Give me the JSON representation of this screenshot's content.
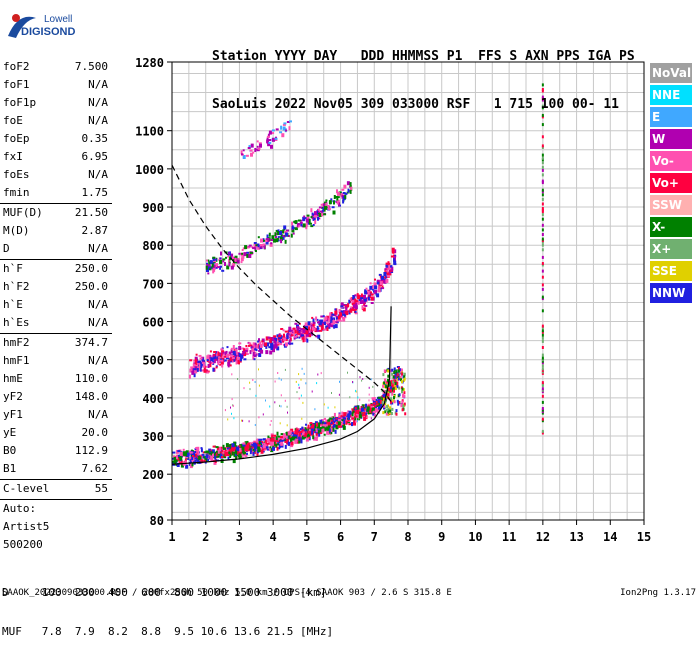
{
  "logo": {
    "line1": "Lowell",
    "line2": "DIGISONDE"
  },
  "header": {
    "line1": "Station YYYY DAY   DDD HHMMSS P1  FFS S AXN PPS IGA PS",
    "line2": "SaoLuis 2022 Nov05 309 033000 RSF   1 715 100 00- 11"
  },
  "params": {
    "g1": [
      {
        "label": "foF2",
        "value": "7.500"
      },
      {
        "label": "foF1",
        "value": "N/A"
      },
      {
        "label": "foF1p",
        "value": "N/A"
      },
      {
        "label": "foE",
        "value": "N/A"
      },
      {
        "label": "foEp",
        "value": "0.35"
      },
      {
        "label": "fxI",
        "value": "6.95"
      },
      {
        "label": "foEs",
        "value": "N/A"
      },
      {
        "label": "fmin",
        "value": "1.75"
      }
    ],
    "g2": [
      {
        "label": "MUF(D)",
        "value": "21.50"
      },
      {
        "label": "M(D)",
        "value": "2.87"
      },
      {
        "label": "D",
        "value": "N/A"
      }
    ],
    "g3": [
      {
        "label": "h`F",
        "value": "250.0"
      },
      {
        "label": "h`F2",
        "value": "250.0"
      },
      {
        "label": "h`E",
        "value": "N/A"
      },
      {
        "label": "h`Es",
        "value": "N/A"
      }
    ],
    "g4": [
      {
        "label": "hmF2",
        "value": "374.7"
      },
      {
        "label": "hmF1",
        "value": "N/A"
      },
      {
        "label": "hmE",
        "value": "110.0"
      },
      {
        "label": "yF2",
        "value": "148.0"
      },
      {
        "label": "yF1",
        "value": "N/A"
      },
      {
        "label": "yE",
        "value": "20.0"
      },
      {
        "label": "B0",
        "value": "112.9"
      },
      {
        "label": "B1",
        "value": "7.62"
      }
    ],
    "clevel": {
      "label": "C-level",
      "value": "55"
    },
    "auto": [
      "Auto:",
      "Artist5",
      "500200"
    ]
  },
  "legend": [
    {
      "label": "NoVal",
      "color": "#a0a0a0"
    },
    {
      "label": "NNE",
      "color": "#00e0ff"
    },
    {
      "label": "E",
      "color": "#40a8ff"
    },
    {
      "label": "W",
      "color": "#b000b0"
    },
    {
      "label": "Vo-",
      "color": "#ff50b0"
    },
    {
      "label": "Vo+",
      "color": "#ff0040"
    },
    {
      "label": "SSW",
      "color": "#ffb0b0"
    },
    {
      "label": "X-",
      "color": "#008000"
    },
    {
      "label": "X+",
      "color": "#70b070"
    },
    {
      "label": "SSE",
      "color": "#e0d000"
    },
    {
      "label": "NNW",
      "color": "#2020e0"
    }
  ],
  "muf_table": {
    "line1": "D     100  200  400  600  800 1000 1500 3000 [km]",
    "line2": "MUF   7.8  7.9  8.2  8.8  9.5 10.6 13.6 21.5 [MHz]"
  },
  "footer": "SAAOK_2022309033000.RSF / 280fx256h 50 kHz 5.0 km / DPS-4 SAAOK 903 / 2.6 S 315.8 E",
  "version": "Ion2Png 1.3.17",
  "chart_data": {
    "type": "scatter",
    "title": "",
    "xlabel": "",
    "ylabel": "",
    "xlim": [
      1,
      15
    ],
    "ylim": [
      80,
      1280
    ],
    "x_ticks": [
      1,
      2,
      3,
      4,
      5,
      6,
      7,
      8,
      9,
      10,
      11,
      12,
      13,
      14,
      15
    ],
    "y_ticks": [
      80,
      200,
      300,
      400,
      500,
      600,
      700,
      800,
      900,
      1000,
      1100,
      1280
    ],
    "grid": true,
    "traces": [
      {
        "name": "F2 1st hop",
        "color_mix": [
          "#2020e0",
          "#ff0040",
          "#008000",
          "#ff50b0"
        ],
        "x": [
          1.0,
          1.5,
          2.0,
          2.5,
          3.0,
          3.5,
          4.0,
          4.5,
          5.0,
          5.5,
          6.0,
          6.5,
          7.0,
          7.3,
          7.5,
          7.7
        ],
        "y": [
          245,
          250,
          255,
          262,
          268,
          278,
          290,
          302,
          315,
          330,
          345,
          365,
          385,
          410,
          440,
          475
        ]
      },
      {
        "name": "F2 2nd hop",
        "color_mix": [
          "#2020e0",
          "#ff0040",
          "#b000b0",
          "#ff50b0"
        ],
        "x": [
          1.5,
          2.0,
          2.5,
          3.0,
          3.5,
          4.0,
          4.5,
          5.0,
          5.5,
          6.0,
          6.5,
          7.0,
          7.3,
          7.6
        ],
        "y": [
          490,
          500,
          510,
          522,
          535,
          550,
          568,
          585,
          605,
          628,
          655,
          690,
          730,
          790
        ]
      },
      {
        "name": "F2 3rd hop",
        "color_mix": [
          "#2020e0",
          "#b000b0",
          "#008000",
          "#ff50b0"
        ],
        "x": [
          2.0,
          2.5,
          3.0,
          3.5,
          4.0,
          4.5,
          5.0,
          5.5,
          6.0,
          6.3
        ],
        "y": [
          750,
          765,
          780,
          800,
          822,
          845,
          872,
          900,
          935,
          960
        ]
      },
      {
        "name": "F2 4th hop",
        "color_mix": [
          "#b000b0",
          "#ff50b0",
          "#40a8ff"
        ],
        "x": [
          3.0,
          3.3,
          3.6,
          3.9,
          4.2,
          4.5
        ],
        "y": [
          1040,
          1055,
          1070,
          1085,
          1100,
          1120
        ]
      }
    ],
    "profile_solid": {
      "x": [
        1.0,
        2.0,
        3.0,
        4.0,
        5.0,
        6.0,
        6.5,
        7.0,
        7.3,
        7.45,
        7.5
      ],
      "y": [
        226,
        232,
        240,
        252,
        268,
        292,
        312,
        345,
        385,
        450,
        640
      ]
    },
    "profile_dashed": {
      "x": [
        1.0,
        1.5,
        2.0,
        2.5,
        3.0,
        3.5,
        4.0,
        4.5,
        5.0,
        5.5,
        6.0,
        6.5,
        7.0,
        7.3,
        7.5
      ],
      "y": [
        1010,
        920,
        850,
        790,
        740,
        695,
        655,
        615,
        580,
        545,
        510,
        475,
        440,
        415,
        390
      ]
    },
    "echo_12mhz": {
      "x": 12.0,
      "y_range": [
        300,
        1240
      ]
    }
  }
}
